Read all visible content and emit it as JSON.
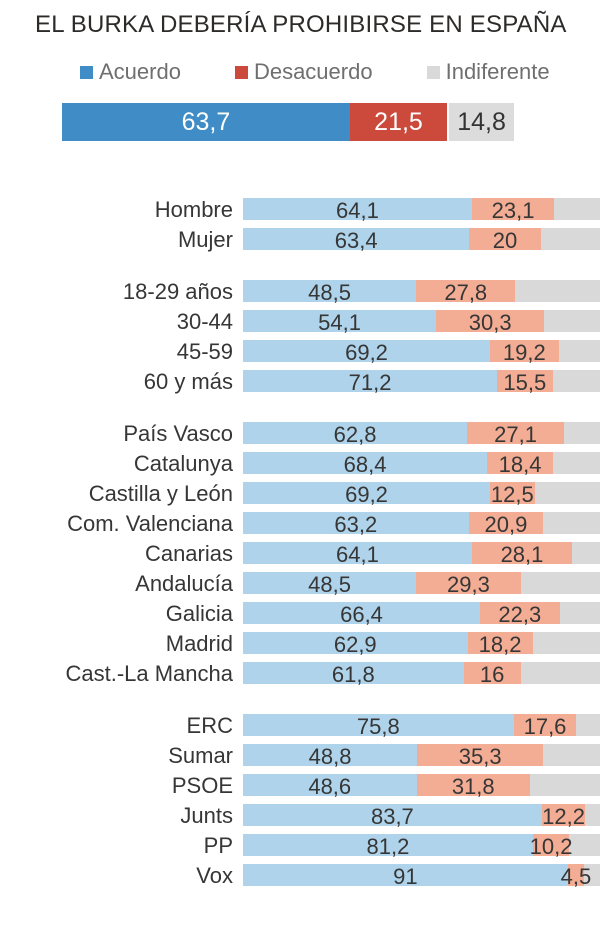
{
  "title": "EL BURKA DEBERÍA PROHIBIRSE EN ESPAÑA",
  "colors": {
    "agree_solid": "#3f8cc6",
    "disagree_solid": "#cb4a3c",
    "indifferent_solid": "#dcdcdc",
    "agree_light": "#aed3ea",
    "disagree_light": "#f3ad94",
    "indifferent_light": "#d9d9d9",
    "total_value_light_text": "#ffffff",
    "total_value_dark_text": "#333333",
    "row_text": "#363636",
    "legend_text": "#6f6f6f",
    "title_text": "#2c2b29"
  },
  "legend": [
    {
      "label": "Acuerdo",
      "color_key": "agree_solid"
    },
    {
      "label": "Desacuerdo",
      "color_key": "disagree_solid"
    },
    {
      "label": "Indiferente",
      "color_key": "indifferent_light"
    }
  ],
  "chart_data": {
    "type": "bar",
    "orientation": "horizontal",
    "stacked": true,
    "units": "percent",
    "xlim": [
      0,
      100
    ],
    "grid": false,
    "legend_position": "top",
    "series_names": [
      "Acuerdo",
      "Desacuerdo",
      "Indiferente"
    ],
    "total_bar": {
      "acuerdo": 63.7,
      "desacuerdo": 21.5,
      "indiferente": 14.8,
      "acuerdo_label": "63,7",
      "desacuerdo_label": "21,5",
      "indiferente_label": "14,8"
    },
    "note": "Indiferente segment of each category row is the unlabeled remainder to 100%",
    "groups": [
      {
        "rows": [
          {
            "label": "Hombre",
            "acuerdo": 64.1,
            "desacuerdo": 23.1,
            "acuerdo_label": "64,1",
            "desacuerdo_label": "23,1"
          },
          {
            "label": "Mujer",
            "acuerdo": 63.4,
            "desacuerdo": 20,
            "acuerdo_label": "63,4",
            "desacuerdo_label": "20"
          }
        ]
      },
      {
        "rows": [
          {
            "label": "18-29 años",
            "acuerdo": 48.5,
            "desacuerdo": 27.8,
            "acuerdo_label": "48,5",
            "desacuerdo_label": "27,8"
          },
          {
            "label": "30-44",
            "acuerdo": 54.1,
            "desacuerdo": 30.3,
            "acuerdo_label": "54,1",
            "desacuerdo_label": "30,3"
          },
          {
            "label": "45-59",
            "acuerdo": 69.2,
            "desacuerdo": 19.2,
            "acuerdo_label": "69,2",
            "desacuerdo_label": "19,2"
          },
          {
            "label": "60 y más",
            "acuerdo": 71.2,
            "desacuerdo": 15.5,
            "acuerdo_label": "71,2",
            "desacuerdo_label": "15,5"
          }
        ]
      },
      {
        "rows": [
          {
            "label": "País Vasco",
            "acuerdo": 62.8,
            "desacuerdo": 27.1,
            "acuerdo_label": "62,8",
            "desacuerdo_label": "27,1"
          },
          {
            "label": "Catalunya",
            "acuerdo": 68.4,
            "desacuerdo": 18.4,
            "acuerdo_label": "68,4",
            "desacuerdo_label": "18,4"
          },
          {
            "label": "Castilla y León",
            "acuerdo": 69.2,
            "desacuerdo": 12.5,
            "acuerdo_label": "69,2",
            "desacuerdo_label": "12,5"
          },
          {
            "label": "Com. Valenciana",
            "acuerdo": 63.2,
            "desacuerdo": 20.9,
            "acuerdo_label": "63,2",
            "desacuerdo_label": "20,9"
          },
          {
            "label": "Canarias",
            "acuerdo": 64.1,
            "desacuerdo": 28.1,
            "acuerdo_label": "64,1",
            "desacuerdo_label": "28,1"
          },
          {
            "label": "Andalucía",
            "acuerdo": 48.5,
            "desacuerdo": 29.3,
            "acuerdo_label": "48,5",
            "desacuerdo_label": "29,3"
          },
          {
            "label": "Galicia",
            "acuerdo": 66.4,
            "desacuerdo": 22.3,
            "acuerdo_label": "66,4",
            "desacuerdo_label": "22,3"
          },
          {
            "label": "Madrid",
            "acuerdo": 62.9,
            "desacuerdo": 18.2,
            "acuerdo_label": "62,9",
            "desacuerdo_label": "18,2"
          },
          {
            "label": "Cast.-La Mancha",
            "acuerdo": 61.8,
            "desacuerdo": 16,
            "acuerdo_label": "61,8",
            "desacuerdo_label": "16"
          }
        ]
      },
      {
        "rows": [
          {
            "label": "ERC",
            "acuerdo": 75.8,
            "desacuerdo": 17.6,
            "acuerdo_label": "75,8",
            "desacuerdo_label": "17,6"
          },
          {
            "label": "Sumar",
            "acuerdo": 48.8,
            "desacuerdo": 35.3,
            "acuerdo_label": "48,8",
            "desacuerdo_label": "35,3"
          },
          {
            "label": "PSOE",
            "acuerdo": 48.6,
            "desacuerdo": 31.8,
            "acuerdo_label": "48,6",
            "desacuerdo_label": "31,8"
          },
          {
            "label": "Junts",
            "acuerdo": 83.7,
            "desacuerdo": 12.2,
            "acuerdo_label": "83,7",
            "desacuerdo_label": "12,2"
          },
          {
            "label": "PP",
            "acuerdo": 81.2,
            "desacuerdo": 10.2,
            "acuerdo_label": "81,2",
            "desacuerdo_label": "10,2"
          },
          {
            "label": "Vox",
            "acuerdo": 91,
            "desacuerdo": 4.5,
            "acuerdo_label": "91",
            "desacuerdo_label": "4,5"
          }
        ]
      }
    ]
  }
}
